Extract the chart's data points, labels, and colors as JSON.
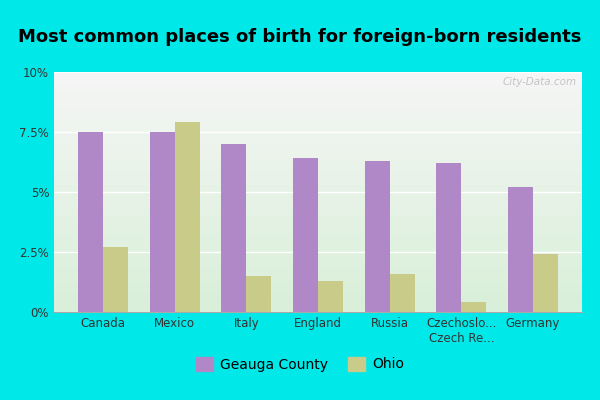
{
  "title": "Most common places of birth for foreign-born residents",
  "categories": [
    "Canada",
    "Mexico",
    "Italy",
    "England",
    "Russia",
    "Czechoslo...\nCzech Re...",
    "Germany"
  ],
  "geauga_values": [
    7.5,
    7.5,
    7.0,
    6.4,
    6.3,
    6.2,
    5.2
  ],
  "ohio_values": [
    2.7,
    7.9,
    1.5,
    1.3,
    1.6,
    0.4,
    2.4
  ],
  "geauga_color": "#b088c8",
  "ohio_color": "#c8cc88",
  "plot_bg_gradient_top": "#f5f5f5",
  "plot_bg_gradient_bottom": "#d8efd8",
  "outer_bg": "#00e8e8",
  "ylim": [
    0,
    10
  ],
  "yticks": [
    0,
    2.5,
    5.0,
    7.5,
    10.0
  ],
  "ytick_labels": [
    "0%",
    "2.5%",
    "5%",
    "7.5%",
    "10%"
  ],
  "bar_width": 0.35,
  "watermark": "City-Data.com",
  "legend_geauga": "Geauga County",
  "legend_ohio": "Ohio",
  "title_fontsize": 13,
  "tick_fontsize": 8.5,
  "legend_fontsize": 10
}
